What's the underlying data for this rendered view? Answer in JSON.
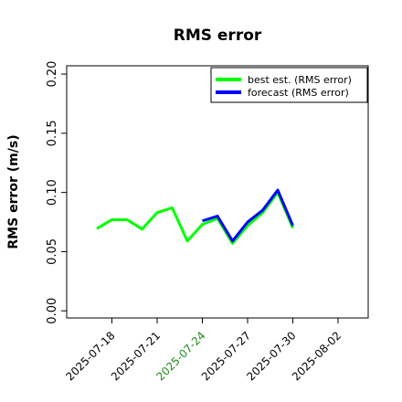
{
  "chart_data": {
    "type": "line",
    "title": "RMS error",
    "y_label": "RMS error (m/s)",
    "x": [
      "2025-07-17",
      "2025-07-18",
      "2025-07-19",
      "2025-07-20",
      "2025-07-21",
      "2025-07-22",
      "2025-07-23",
      "2025-07-24",
      "2025-07-25",
      "2025-07-26",
      "2025-07-27",
      "2025-07-28",
      "2025-07-29",
      "2025-07-30"
    ],
    "series": [
      {
        "name": "best est. (RMS error)",
        "color": "#00ff00",
        "values": [
          0.0695,
          0.077,
          0.077,
          0.069,
          0.083,
          0.087,
          0.059,
          0.073,
          0.078,
          0.057,
          0.072,
          0.083,
          0.1,
          0.07
        ]
      },
      {
        "name": "forecast (RMS error)",
        "color": "#0000ff",
        "values": [
          null,
          null,
          null,
          null,
          null,
          null,
          null,
          0.076,
          0.08,
          0.059,
          0.075,
          0.085,
          0.102,
          0.072
        ]
      }
    ],
    "xlim": [
      "2025-07-15",
      "2025-08-04"
    ],
    "xticks": [
      "2025-07-18",
      "2025-07-21",
      "2025-07-24",
      "2025-07-27",
      "2025-07-30",
      "2025-08-02"
    ],
    "xtick_highlight": {
      "index": 2,
      "color": "#228b22"
    },
    "ylim": [
      -0.006,
      0.207
    ],
    "yticks": [
      {
        "value": 0,
        "label": "0.00"
      },
      {
        "value": 0.05,
        "label": "0.05"
      },
      {
        "value": 0.1,
        "label": "0.10"
      },
      {
        "value": 0.15,
        "label": "0.15"
      },
      {
        "value": 0.2,
        "label": "0.20"
      }
    ],
    "legend": "upper right",
    "grid": false
  }
}
